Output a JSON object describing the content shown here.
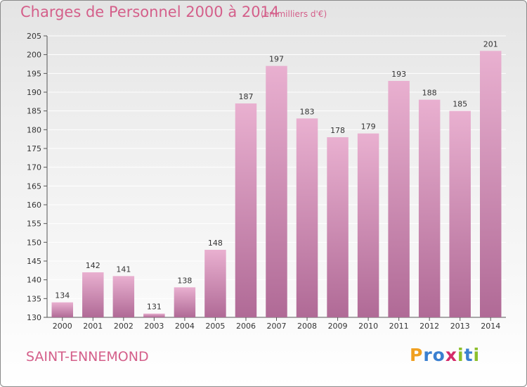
{
  "header": {
    "title": "Charges de Personnel 2000 à 2014",
    "subtitle": "(en milliers d'€)"
  },
  "footer": {
    "commune": "SAINT-ENNEMOND",
    "logo_text": "Proxiti",
    "logo_letters": [
      {
        "ch": "P",
        "color": "#f0a020"
      },
      {
        "ch": "r",
        "color": "#3a7fd0"
      },
      {
        "ch": "o",
        "color": "#3a7fd0"
      },
      {
        "ch": "x",
        "color": "#d42a6a"
      },
      {
        "ch": "i",
        "color": "#8cbf2a"
      },
      {
        "ch": "t",
        "color": "#3a7fd0"
      },
      {
        "ch": "i",
        "color": "#8cbf2a"
      }
    ]
  },
  "colors": {
    "bar_top": "#e9b0d0",
    "bar_bottom": "#b06a96",
    "accent": "#d45f8a",
    "grid": "#ffffff"
  },
  "chart_data": {
    "type": "bar",
    "title": "Charges de Personnel 2000 à 2014",
    "subtitle": "(en milliers d'€)",
    "xlabel": "",
    "ylabel": "",
    "categories": [
      "2000",
      "2001",
      "2002",
      "2003",
      "2004",
      "2005",
      "2006",
      "2007",
      "2008",
      "2009",
      "2010",
      "2011",
      "2012",
      "2013",
      "2014"
    ],
    "values": [
      134,
      142,
      141,
      131,
      138,
      148,
      187,
      197,
      183,
      178,
      179,
      193,
      188,
      185,
      201
    ],
    "ylim": [
      130,
      205
    ],
    "yticks": [
      130,
      135,
      140,
      145,
      150,
      155,
      160,
      165,
      170,
      175,
      180,
      185,
      190,
      195,
      200,
      205
    ],
    "grid": true,
    "legend": "none"
  }
}
